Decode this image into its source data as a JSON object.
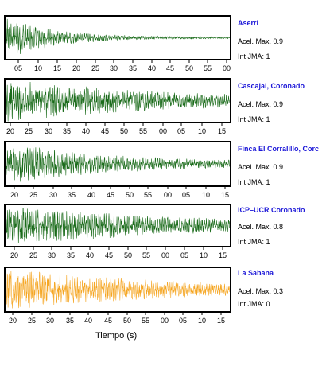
{
  "chart_data": {
    "type": "line",
    "title": "",
    "xlabel": "Tiempo (s)",
    "ylabel": "",
    "grid": false,
    "legend": "right",
    "series": [
      {
        "name": "Aserri",
        "color": "#1a6b1a",
        "acel_label": "Acel. Max. 0.9",
        "jma_label": "Int JMA: 1",
        "tick_labels": [
          "05",
          "10",
          "15",
          "20",
          "25",
          "30",
          "35",
          "40",
          "45",
          "50",
          "55",
          "00"
        ],
        "onset_fraction": 0.0,
        "peak_amplitude": 0.9,
        "decay": 4.5
      },
      {
        "name": "Cascajal, Coronado",
        "color": "#1a6b1a",
        "acel_label": "Acel. Max. 0.9",
        "jma_label": "Int JMA: 1",
        "tick_labels": [
          "20",
          "25",
          "30",
          "35",
          "40",
          "45",
          "50",
          "55",
          "00",
          "05",
          "10",
          "15"
        ],
        "onset_fraction": 0.0,
        "peak_amplitude": 0.9,
        "decay": 1.4
      },
      {
        "name": "Finca El Corralillo, Corc",
        "color": "#1a6b1a",
        "acel_label": "Acel. Max. 0.9",
        "jma_label": "Int JMA: 1",
        "tick_labels": [
          "20",
          "25",
          "30",
          "35",
          "40",
          "45",
          "50",
          "55",
          "00",
          "05",
          "10",
          "15"
        ],
        "onset_fraction": 0.0,
        "peak_amplitude": 0.9,
        "decay": 2.2
      },
      {
        "name": "ICP–UCR Coronado",
        "color": "#1a6b1a",
        "acel_label": "Acel. Max. 0.8",
        "jma_label": "Int JMA: 1",
        "tick_labels": [
          "20",
          "25",
          "30",
          "35",
          "40",
          "45",
          "50",
          "55",
          "00",
          "05",
          "10",
          "15"
        ],
        "onset_fraction": 0.0,
        "peak_amplitude": 0.8,
        "decay": 1.3
      },
      {
        "name": "La Sabana",
        "color": "#f5a623",
        "acel_label": "Acel. Max. 0.3",
        "jma_label": "Int JMA: 0",
        "tick_labels": [
          "20",
          "25",
          "30",
          "35",
          "40",
          "45",
          "50",
          "55",
          "00",
          "05",
          "10",
          "15"
        ],
        "onset_fraction": 0.0,
        "peak_amplitude": 0.3,
        "decay": 1.5
      }
    ]
  }
}
